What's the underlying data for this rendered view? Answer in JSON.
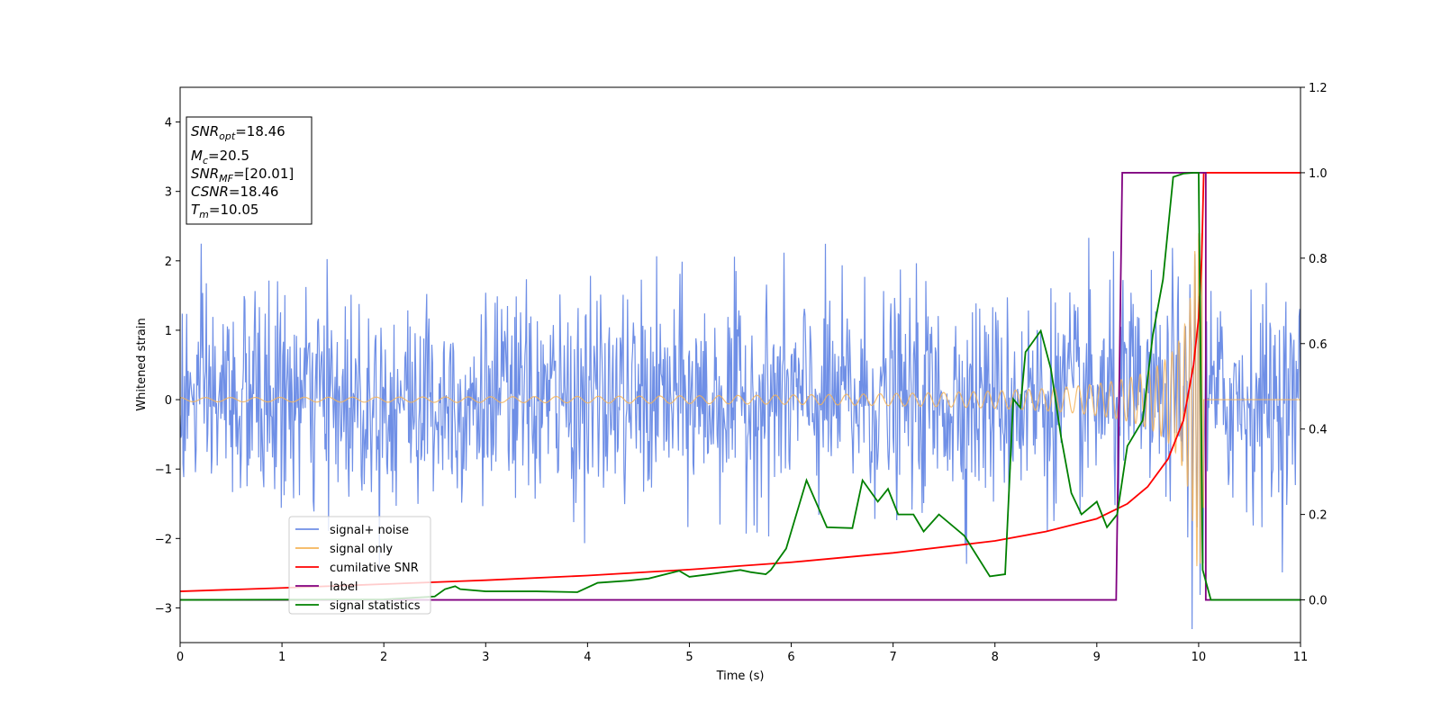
{
  "chart_data": {
    "type": "line",
    "xlabel": "Time (s)",
    "ylabel": "Whitened strain",
    "xlim": [
      0,
      11
    ],
    "ylim": [
      -3.5,
      4.5
    ],
    "y2lim": [
      -0.1,
      1.2
    ],
    "xticks": [
      "0",
      "1",
      "2",
      "3",
      "4",
      "5",
      "6",
      "7",
      "8",
      "9",
      "10",
      "11"
    ],
    "yticks": [
      "−3",
      "−2",
      "−1",
      "0",
      "1",
      "2",
      "3",
      "4"
    ],
    "y2ticks": [
      "0.0",
      "0.2",
      "0.4",
      "0.6",
      "0.8",
      "1.0",
      "1.2"
    ],
    "legend_position": "lower-left",
    "info_box": {
      "snr_opt": {
        "var": "SNR",
        "sub": "opt",
        "value": "=18.46"
      },
      "mc": {
        "var": "M",
        "sub": "c",
        "value": "=20.5"
      },
      "snr_mf": {
        "var": "SNR",
        "sub": "MF",
        "value": "=[20.01]"
      },
      "csnr": {
        "var": "CSNR",
        "value": "=18.46"
      },
      "tm": {
        "var": "T",
        "sub": "m",
        "value": "=10.05"
      }
    },
    "series": [
      {
        "name": "signal+ noise",
        "color": "#6f8fe6",
        "axis": "left",
        "noise_sigma": 0.75,
        "sample_rate_hz": 2048
      },
      {
        "name": "signal only",
        "color": "#f5b45a",
        "axis": "left",
        "peak_time": 10.05,
        "peak_amplitude": 2.4,
        "start_amplitude": 0.03
      },
      {
        "name": "cumilative SNR",
        "color": "#ff0000",
        "axis": "right",
        "points": [
          [
            0,
            0.02
          ],
          [
            1,
            0.028
          ],
          [
            2,
            0.037
          ],
          [
            3,
            0.046
          ],
          [
            4,
            0.057
          ],
          [
            5,
            0.071
          ],
          [
            6,
            0.088
          ],
          [
            7,
            0.11
          ],
          [
            8,
            0.138
          ],
          [
            8.5,
            0.16
          ],
          [
            9,
            0.19
          ],
          [
            9.3,
            0.225
          ],
          [
            9.5,
            0.265
          ],
          [
            9.7,
            0.33
          ],
          [
            9.85,
            0.42
          ],
          [
            9.95,
            0.55
          ],
          [
            10.0,
            0.66
          ],
          [
            10.03,
            0.8
          ],
          [
            10.05,
            1.0
          ],
          [
            11,
            1.0
          ]
        ]
      },
      {
        "name": "label",
        "color": "#800080",
        "axis": "right",
        "points": [
          [
            0,
            0
          ],
          [
            9.19,
            0
          ],
          [
            9.25,
            1
          ],
          [
            10.07,
            1
          ],
          [
            10.07,
            0
          ],
          [
            11,
            0
          ]
        ]
      },
      {
        "name": "signal statistics",
        "color": "#008000",
        "axis": "right",
        "points": [
          [
            0,
            0.0
          ],
          [
            2.0,
            0.001
          ],
          [
            2.5,
            0.008
          ],
          [
            2.6,
            0.025
          ],
          [
            2.7,
            0.032
          ],
          [
            2.75,
            0.025
          ],
          [
            3.0,
            0.02
          ],
          [
            3.5,
            0.02
          ],
          [
            3.9,
            0.018
          ],
          [
            4.1,
            0.04
          ],
          [
            4.4,
            0.045
          ],
          [
            4.6,
            0.05
          ],
          [
            4.9,
            0.068
          ],
          [
            5.0,
            0.054
          ],
          [
            5.2,
            0.06
          ],
          [
            5.5,
            0.07
          ],
          [
            5.6,
            0.065
          ],
          [
            5.75,
            0.06
          ],
          [
            5.8,
            0.07
          ],
          [
            5.95,
            0.12
          ],
          [
            6.15,
            0.28
          ],
          [
            6.35,
            0.17
          ],
          [
            6.6,
            0.168
          ],
          [
            6.7,
            0.28
          ],
          [
            6.85,
            0.23
          ],
          [
            6.95,
            0.26
          ],
          [
            7.05,
            0.2
          ],
          [
            7.2,
            0.2
          ],
          [
            7.3,
            0.16
          ],
          [
            7.45,
            0.2
          ],
          [
            7.7,
            0.15
          ],
          [
            7.95,
            0.055
          ],
          [
            8.1,
            0.06
          ],
          [
            8.18,
            0.47
          ],
          [
            8.25,
            0.45
          ],
          [
            8.3,
            0.58
          ],
          [
            8.45,
            0.63
          ],
          [
            8.55,
            0.54
          ],
          [
            8.65,
            0.38
          ],
          [
            8.75,
            0.25
          ],
          [
            8.85,
            0.2
          ],
          [
            9.0,
            0.23
          ],
          [
            9.1,
            0.17
          ],
          [
            9.2,
            0.2
          ],
          [
            9.3,
            0.36
          ],
          [
            9.45,
            0.42
          ],
          [
            9.55,
            0.62
          ],
          [
            9.65,
            0.75
          ],
          [
            9.75,
            0.99
          ],
          [
            9.85,
            0.998
          ],
          [
            9.95,
            1.0
          ],
          [
            10.0,
            1.0
          ],
          [
            10.04,
            0.07
          ],
          [
            10.12,
            0.0
          ],
          [
            11,
            0.0
          ]
        ]
      }
    ]
  }
}
